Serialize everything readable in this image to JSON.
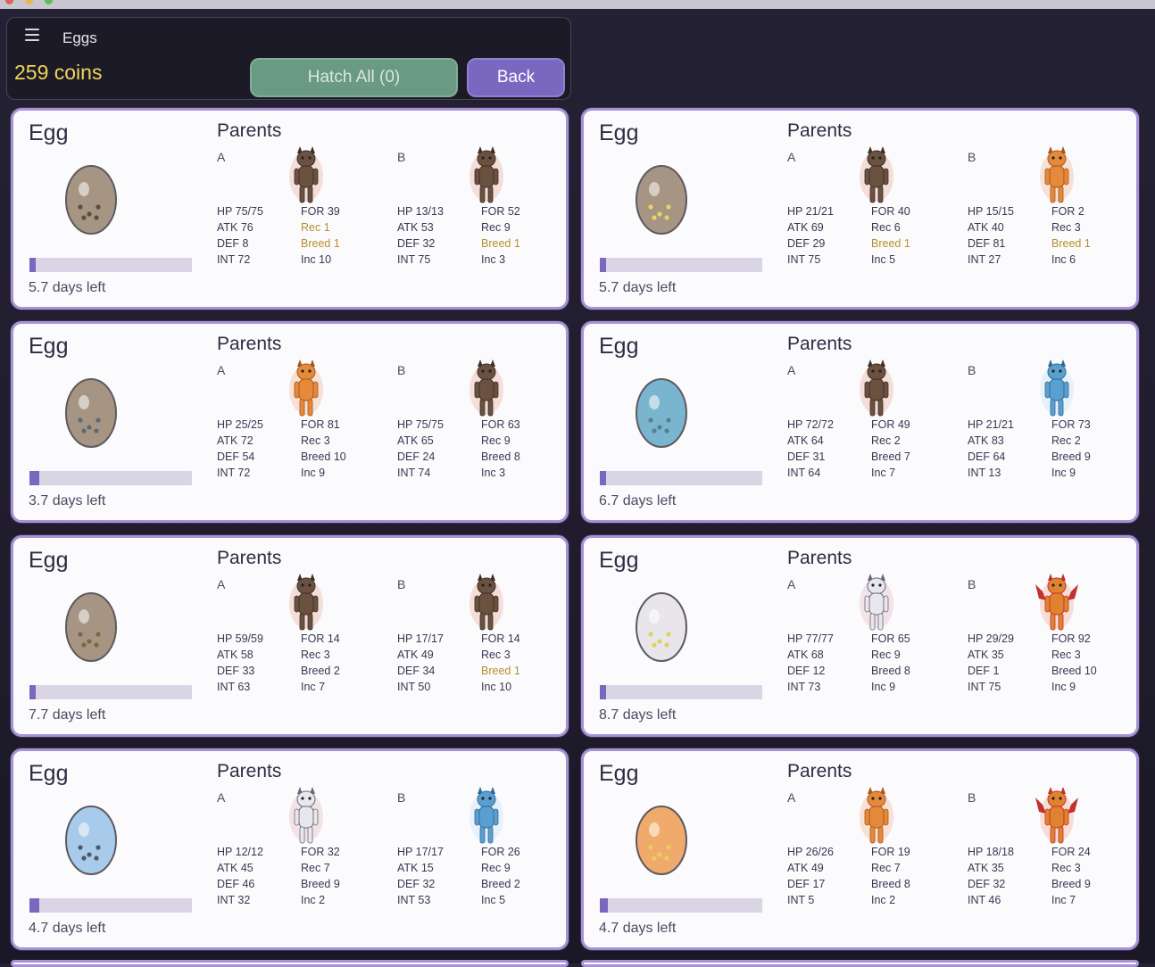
{
  "header": {
    "title": "Eggs",
    "coins": "259 coins",
    "hatch_label": "Hatch All (0)",
    "back_label": "Back"
  },
  "labels": {
    "egg": "Egg",
    "parents": "Parents",
    "a": "A",
    "b": "B"
  },
  "eggs": [
    {
      "egg_color": "#a59582",
      "dot_color": "#5b4d42",
      "progress": 0.04,
      "days_left": "5.7 days left",
      "parent_a": {
        "creature": "brown",
        "hp": "75/75",
        "atk": "76",
        "def": "8",
        "int": "72",
        "for": "39",
        "rec": "1",
        "breed": "1",
        "inc": "10",
        "hl": [
          "rec",
          "breed"
        ]
      },
      "parent_b": {
        "creature": "brown",
        "hp": "13/13",
        "atk": "53",
        "def": "32",
        "int": "75",
        "for": "52",
        "rec": "9",
        "breed": "1",
        "inc": "3",
        "hl": [
          "breed"
        ]
      }
    },
    {
      "egg_color": "#a59582",
      "dot_color": "#e7d36a",
      "progress": 0.04,
      "days_left": "5.7 days left",
      "parent_a": {
        "creature": "brown",
        "hp": "21/21",
        "atk": "69",
        "def": "29",
        "int": "75",
        "for": "40",
        "rec": "6",
        "breed": "1",
        "inc": "5",
        "hl": [
          "breed"
        ]
      },
      "parent_b": {
        "creature": "orange",
        "hp": "15/15",
        "atk": "40",
        "def": "81",
        "int": "27",
        "for": "2",
        "rec": "3",
        "breed": "1",
        "inc": "6",
        "hl": [
          "breed"
        ]
      }
    },
    {
      "egg_color": "#a59582",
      "dot_color": "#5a6a7a",
      "progress": 0.06,
      "days_left": "3.7 days left",
      "parent_a": {
        "creature": "orange",
        "hp": "25/25",
        "atk": "72",
        "def": "54",
        "int": "72",
        "for": "81",
        "rec": "3",
        "breed": "10",
        "inc": "9",
        "hl": []
      },
      "parent_b": {
        "creature": "brown",
        "hp": "75/75",
        "atk": "65",
        "def": "24",
        "int": "74",
        "for": "63",
        "rec": "9",
        "breed": "8",
        "inc": "3",
        "hl": []
      }
    },
    {
      "egg_color": "#7ab5cf",
      "dot_color": "#5a7e8e",
      "progress": 0.04,
      "days_left": "6.7 days left",
      "parent_a": {
        "creature": "brown",
        "hp": "72/72",
        "atk": "64",
        "def": "31",
        "int": "64",
        "for": "49",
        "rec": "2",
        "breed": "7",
        "inc": "7",
        "hl": []
      },
      "parent_b": {
        "creature": "blue",
        "hp": "21/21",
        "atk": "83",
        "def": "64",
        "int": "13",
        "for": "73",
        "rec": "2",
        "breed": "9",
        "inc": "9",
        "hl": []
      }
    },
    {
      "egg_color": "#a59582",
      "dot_color": "#7a6a3a",
      "progress": 0.04,
      "days_left": "7.7 days left",
      "parent_a": {
        "creature": "brown",
        "hp": "59/59",
        "atk": "58",
        "def": "33",
        "int": "63",
        "for": "14",
        "rec": "3",
        "breed": "2",
        "inc": "7",
        "hl": []
      },
      "parent_b": {
        "creature": "brown",
        "hp": "17/17",
        "atk": "49",
        "def": "34",
        "int": "50",
        "for": "14",
        "rec": "3",
        "breed": "1",
        "inc": "10",
        "hl": [
          "breed"
        ]
      }
    },
    {
      "egg_color": "#e8e6ea",
      "dot_color": "#e2cf63",
      "progress": 0.04,
      "days_left": "8.7 days left",
      "parent_a": {
        "creature": "white",
        "hp": "77/77",
        "atk": "68",
        "def": "12",
        "int": "73",
        "for": "65",
        "rec": "9",
        "breed": "8",
        "inc": "9",
        "hl": []
      },
      "parent_b": {
        "creature": "red",
        "hp": "29/29",
        "atk": "35",
        "def": "1",
        "int": "75",
        "for": "92",
        "rec": "3",
        "breed": "10",
        "inc": "9",
        "hl": []
      }
    },
    {
      "egg_color": "#a8cbeb",
      "dot_color": "#4e5a66",
      "progress": 0.06,
      "days_left": "4.7 days left",
      "parent_a": {
        "creature": "white",
        "hp": "12/12",
        "atk": "45",
        "def": "46",
        "int": "32",
        "for": "32",
        "rec": "7",
        "breed": "9",
        "inc": "2",
        "hl": []
      },
      "parent_b": {
        "creature": "blue",
        "hp": "17/17",
        "atk": "15",
        "def": "32",
        "int": "53",
        "for": "26",
        "rec": "9",
        "breed": "2",
        "inc": "5",
        "hl": []
      }
    },
    {
      "egg_color": "#f0aa6b",
      "dot_color": "#e8cf5c",
      "progress": 0.05,
      "days_left": "4.7 days left",
      "parent_a": {
        "creature": "orange",
        "hp": "26/26",
        "atk": "49",
        "def": "17",
        "int": "5",
        "for": "19",
        "rec": "7",
        "breed": "8",
        "inc": "2",
        "hl": []
      },
      "parent_b": {
        "creature": "red",
        "hp": "18/18",
        "atk": "35",
        "def": "32",
        "int": "46",
        "for": "24",
        "rec": "3",
        "breed": "9",
        "inc": "7",
        "hl": []
      }
    }
  ]
}
